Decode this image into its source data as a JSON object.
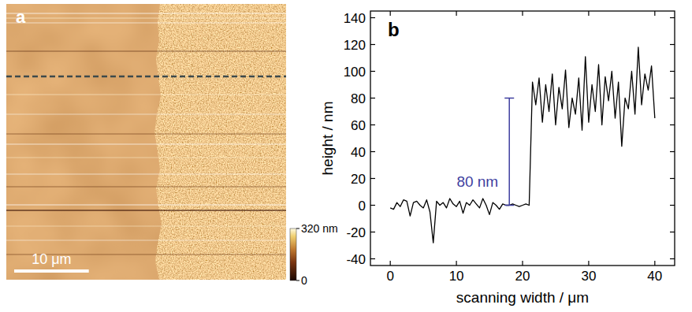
{
  "chart_data": [
    {
      "type": "image",
      "panel": "a",
      "xlim": [
        0,
        37.5
      ],
      "scale_bar": {
        "value": 10,
        "label": "10 μm"
      },
      "colorbar": {
        "range": [
          0,
          320
        ],
        "ticks": [
          {
            "value": 320,
            "label": "320 nm"
          },
          0
        ]
      }
    },
    {
      "type": "line",
      "panel": "b",
      "x_label": "scanning width / μm",
      "y_label": "height / nm",
      "xlim": [
        -3,
        43
      ],
      "xticks": [
        0,
        10,
        20,
        30,
        40
      ],
      "ylim": [
        -45,
        145
      ],
      "yticks": [
        -40,
        -20,
        0,
        20,
        40,
        60,
        80,
        100,
        120,
        140
      ],
      "x": [
        0,
        0.5,
        1,
        1.5,
        2,
        2.5,
        3,
        3.5,
        4,
        4.5,
        5,
        5.5,
        6,
        6.5,
        7,
        7.5,
        8,
        8.5,
        9,
        9.5,
        10,
        10.5,
        11,
        11.5,
        12,
        12.5,
        13,
        13.5,
        14,
        14.5,
        15,
        15.5,
        16,
        16.5,
        17,
        17.5,
        18,
        18.5,
        19,
        19.5,
        20,
        20.5,
        21,
        21.5,
        22,
        22.5,
        23,
        23.5,
        24,
        24.5,
        25,
        25.5,
        26,
        26.5,
        27,
        27.5,
        28,
        28.5,
        29,
        29.5,
        30,
        30.5,
        31,
        31.5,
        32,
        32.5,
        33,
        33.5,
        34,
        34.5,
        35,
        35.5,
        36,
        36.5,
        37,
        37.5,
        38,
        38.5,
        39,
        39.5,
        40
      ],
      "series": [
        {
          "color": "#000000",
          "values": [
            -2,
            -3,
            2,
            -1,
            4,
            3,
            -8,
            2,
            3,
            0,
            -2,
            4,
            -5,
            -28,
            3,
            0,
            2,
            -2,
            5,
            1,
            -1,
            3,
            -6,
            2,
            0,
            4,
            1,
            -2,
            5,
            0,
            -7,
            2,
            0,
            -3,
            1,
            0,
            0,
            1,
            0,
            -1,
            0,
            1,
            0,
            92,
            75,
            95,
            62,
            90,
            70,
            98,
            60,
            88,
            72,
            101,
            58,
            80,
            68,
            95,
            56,
            111,
            62,
            90,
            70,
            105,
            60,
            96,
            78,
            100,
            65,
            92,
            44,
            80,
            72,
            100,
            68,
            118,
            75,
            98,
            86,
            104,
            65
          ]
        }
      ],
      "annotations": [
        {
          "text": "80 nm",
          "x": 18,
          "y0": 0,
          "y1": 80,
          "color": "#3f3f9f"
        }
      ]
    }
  ]
}
